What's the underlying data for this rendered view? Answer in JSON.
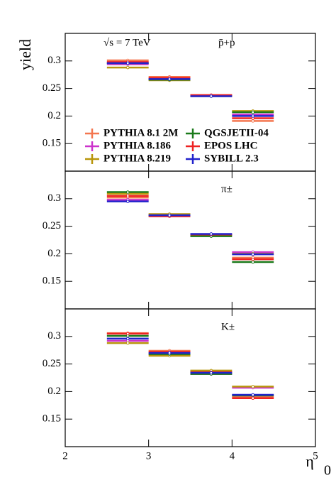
{
  "chart_data": [
    {
      "type": "histogram",
      "ylabel": "yield",
      "annotations": [
        "√s = 7 TeV",
        "p̄+p"
      ],
      "bins": [
        2.5,
        3,
        3.5,
        4,
        4.5
      ],
      "xlim": [
        2,
        5
      ],
      "ylim": [
        0.1,
        0.35
      ],
      "yticks": [
        0.15,
        0.2,
        0.25,
        0.3
      ],
      "series": [
        {
          "name": "PYTHIA 8.1 2M",
          "color": "#f4764f",
          "values": [
            0.301,
            0.271,
            0.237,
            0.191
          ]
        },
        {
          "name": "PYTHIA 8.186",
          "color": "#cc33cc",
          "values": [
            0.294,
            0.267,
            0.237,
            0.203
          ]
        },
        {
          "name": "PYTHIA 8.219",
          "color": "#b8960c",
          "values": [
            0.288,
            0.265,
            0.236,
            0.209
          ]
        },
        {
          "name": "QGSJETII-04",
          "color": "#1a7a1a",
          "values": [
            0.296,
            0.266,
            0.237,
            0.207
          ]
        },
        {
          "name": "EPOS LHC",
          "color": "#ee2222",
          "values": [
            0.298,
            0.269,
            0.238,
            0.196
          ]
        },
        {
          "name": "SYBILL 2.3",
          "color": "#2222cc",
          "values": [
            0.296,
            0.267,
            0.236,
            0.2
          ]
        }
      ]
    },
    {
      "type": "histogram",
      "annotations": [
        "π±"
      ],
      "bins": [
        2.5,
        3,
        3.5,
        4,
        4.5
      ],
      "xlim": [
        2,
        5
      ],
      "ylim": [
        0.1,
        0.35
      ],
      "yticks": [
        0.15,
        0.2,
        0.25,
        0.3
      ],
      "series": [
        {
          "color": "#f4764f",
          "values": [
            0.302,
            0.271,
            0.235,
            0.193
          ]
        },
        {
          "color": "#cc33cc",
          "values": [
            0.298,
            0.27,
            0.235,
            0.203
          ]
        },
        {
          "color": "#b8960c",
          "values": [
            0.309,
            0.272,
            0.234,
            0.2
          ]
        },
        {
          "color": "#1a7a1a",
          "values": [
            0.312,
            0.269,
            0.232,
            0.185
          ]
        },
        {
          "color": "#ee2222",
          "values": [
            0.305,
            0.268,
            0.235,
            0.19
          ]
        },
        {
          "color": "#2222cc",
          "values": [
            0.295,
            0.27,
            0.236,
            0.199
          ]
        }
      ]
    },
    {
      "type": "histogram",
      "xlabel": "η",
      "annotations": [
        "K±",
        "0"
      ],
      "bins": [
        2.5,
        3,
        3.5,
        4,
        4.5
      ],
      "xlim": [
        2,
        5
      ],
      "ylim": [
        0.1,
        0.35
      ],
      "yticks": [
        0.15,
        0.2,
        0.25,
        0.3
      ],
      "xticks": [
        2,
        3,
        4,
        5
      ],
      "series": [
        {
          "color": "#f4764f",
          "values": [
            0.306,
            0.274,
            0.236,
            0.19
          ]
        },
        {
          "color": "#cc33cc",
          "values": [
            0.292,
            0.268,
            0.232,
            0.207
          ]
        },
        {
          "color": "#b8960c",
          "values": [
            0.288,
            0.265,
            0.238,
            0.209
          ]
        },
        {
          "color": "#1a7a1a",
          "values": [
            0.301,
            0.268,
            0.232,
            0.193
          ]
        },
        {
          "color": "#ee2222",
          "values": [
            0.305,
            0.272,
            0.235,
            0.188
          ]
        },
        {
          "color": "#2222cc",
          "values": [
            0.296,
            0.27,
            0.234,
            0.194
          ]
        }
      ]
    }
  ]
}
